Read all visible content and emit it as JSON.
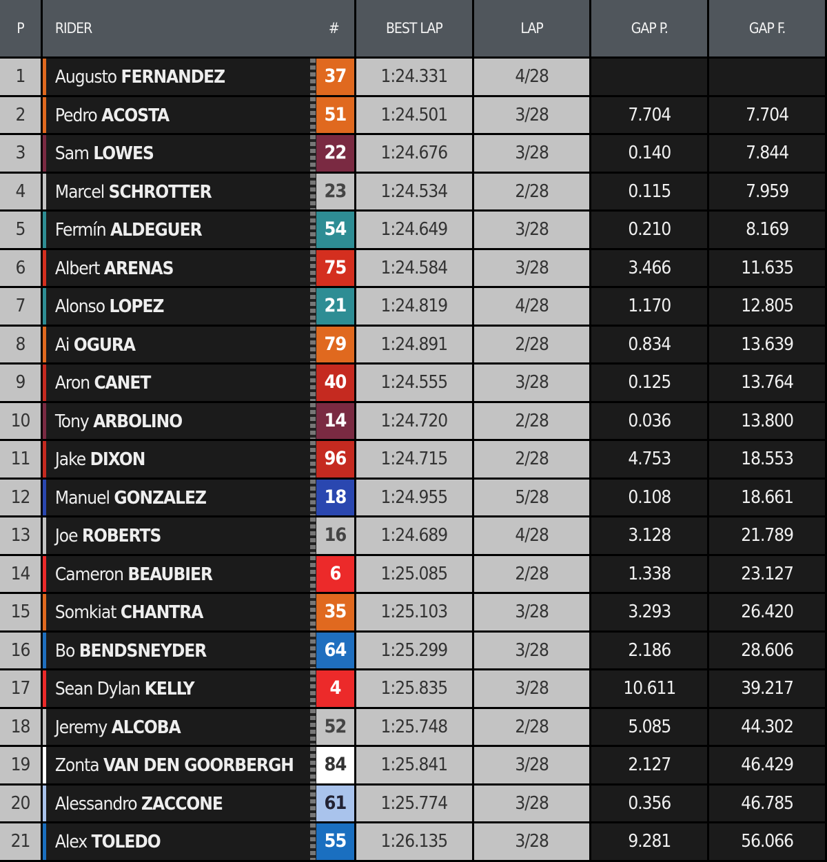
{
  "headers": {
    "p": "P",
    "rider": "RIDER",
    "num": "#",
    "best_lap": "BEST LAP",
    "lap": "LAP",
    "gap_p": "GAP P.",
    "gap_f": "GAP F."
  },
  "rows": [
    {
      "p": "1",
      "first": "Augusto",
      "last": "FERNANDEZ",
      "num": "37",
      "color": "#e0691f",
      "text": "#fff",
      "best": "1:24.331",
      "lap": "4/28",
      "gap_p": "",
      "gap_f": ""
    },
    {
      "p": "2",
      "first": "Pedro",
      "last": "ACOSTA",
      "num": "51",
      "color": "#e0691f",
      "text": "#fff",
      "best": "1:24.501",
      "lap": "3/28",
      "gap_p": "7.704",
      "gap_f": "7.704"
    },
    {
      "p": "3",
      "first": "Sam",
      "last": "LOWES",
      "num": "22",
      "color": "#7a2a42",
      "text": "#fff",
      "best": "1:24.676",
      "lap": "3/28",
      "gap_p": "0.140",
      "gap_f": "7.844"
    },
    {
      "p": "4",
      "first": "Marcel",
      "last": "SCHROTTER",
      "num": "23",
      "color": "#c3c3c3",
      "text": "#444",
      "best": "1:24.534",
      "lap": "2/28",
      "gap_p": "0.115",
      "gap_f": "7.959"
    },
    {
      "p": "5",
      "first": "Fermín",
      "last": "ALDEGUER",
      "num": "54",
      "color": "#2e8d94",
      "text": "#fff",
      "best": "1:24.649",
      "lap": "3/28",
      "gap_p": "0.210",
      "gap_f": "8.169"
    },
    {
      "p": "6",
      "first": "Albert",
      "last": "ARENAS",
      "num": "75",
      "color": "#d42f1f",
      "text": "#fff",
      "best": "1:24.584",
      "lap": "3/28",
      "gap_p": "3.466",
      "gap_f": "11.635"
    },
    {
      "p": "7",
      "first": "Alonso",
      "last": "LOPEZ",
      "num": "21",
      "color": "#2e8d94",
      "text": "#fff",
      "best": "1:24.819",
      "lap": "4/28",
      "gap_p": "1.170",
      "gap_f": "12.805"
    },
    {
      "p": "8",
      "first": "Ai",
      "last": "OGURA",
      "num": "79",
      "color": "#e0691f",
      "text": "#fff",
      "best": "1:24.891",
      "lap": "2/28",
      "gap_p": "0.834",
      "gap_f": "13.639"
    },
    {
      "p": "9",
      "first": "Aron",
      "last": "CANET",
      "num": "40",
      "color": "#c52a20",
      "text": "#fff",
      "best": "1:24.555",
      "lap": "3/28",
      "gap_p": "0.125",
      "gap_f": "13.764"
    },
    {
      "p": "10",
      "first": "Tony",
      "last": "ARBOLINO",
      "num": "14",
      "color": "#7a2a42",
      "text": "#fff",
      "best": "1:24.720",
      "lap": "2/28",
      "gap_p": "0.036",
      "gap_f": "13.800"
    },
    {
      "p": "11",
      "first": "Jake",
      "last": "DIXON",
      "num": "96",
      "color": "#c52a20",
      "text": "#fff",
      "best": "1:24.715",
      "lap": "2/28",
      "gap_p": "4.753",
      "gap_f": "18.553"
    },
    {
      "p": "12",
      "first": "Manuel",
      "last": "GONZALEZ",
      "num": "18",
      "color": "#2a47b0",
      "text": "#fff",
      "best": "1:24.955",
      "lap": "5/28",
      "gap_p": "0.108",
      "gap_f": "18.661"
    },
    {
      "p": "13",
      "first": "Joe",
      "last": "ROBERTS",
      "num": "16",
      "color": "#c3c3c3",
      "text": "#444",
      "best": "1:24.689",
      "lap": "4/28",
      "gap_p": "3.128",
      "gap_f": "21.789"
    },
    {
      "p": "14",
      "first": "Cameron",
      "last": "BEAUBIER",
      "num": "6",
      "color": "#ec2a2a",
      "text": "#fff",
      "best": "1:25.085",
      "lap": "2/28",
      "gap_p": "1.338",
      "gap_f": "23.127"
    },
    {
      "p": "15",
      "first": "Somkiat",
      "last": "CHANTRA",
      "num": "35",
      "color": "#e0691f",
      "text": "#fff",
      "best": "1:25.103",
      "lap": "3/28",
      "gap_p": "3.293",
      "gap_f": "26.420"
    },
    {
      "p": "16",
      "first": "Bo",
      "last": "BENDSNEYDER",
      "num": "64",
      "color": "#1f6fbf",
      "text": "#fff",
      "best": "1:25.299",
      "lap": "3/28",
      "gap_p": "2.186",
      "gap_f": "28.606"
    },
    {
      "p": "17",
      "first": "Sean Dylan",
      "last": "KELLY",
      "num": "4",
      "color": "#ec2a2a",
      "text": "#fff",
      "best": "1:25.835",
      "lap": "3/28",
      "gap_p": "10.611",
      "gap_f": "39.217"
    },
    {
      "p": "18",
      "first": "Jeremy",
      "last": "ALCOBA",
      "num": "52",
      "color": "#c3c3c3",
      "text": "#444",
      "best": "1:25.748",
      "lap": "2/28",
      "gap_p": "5.085",
      "gap_f": "44.302"
    },
    {
      "p": "19",
      "first": "Zonta",
      "last": "VAN DEN GOORBERGH",
      "num": "84",
      "color": "#ffffff",
      "text": "#333",
      "best": "1:25.841",
      "lap": "3/28",
      "gap_p": "2.127",
      "gap_f": "46.429"
    },
    {
      "p": "20",
      "first": "Alessandro",
      "last": "ZACCONE",
      "num": "61",
      "color": "#a9c3ec",
      "text": "#223",
      "best": "1:25.774",
      "lap": "3/28",
      "gap_p": "0.356",
      "gap_f": "46.785"
    },
    {
      "p": "21",
      "first": "Alex",
      "last": "TOLEDO",
      "num": "55",
      "color": "#1a6fc0",
      "text": "#fff",
      "best": "1:26.135",
      "lap": "3/28",
      "gap_p": "9.281",
      "gap_f": "56.066"
    }
  ]
}
